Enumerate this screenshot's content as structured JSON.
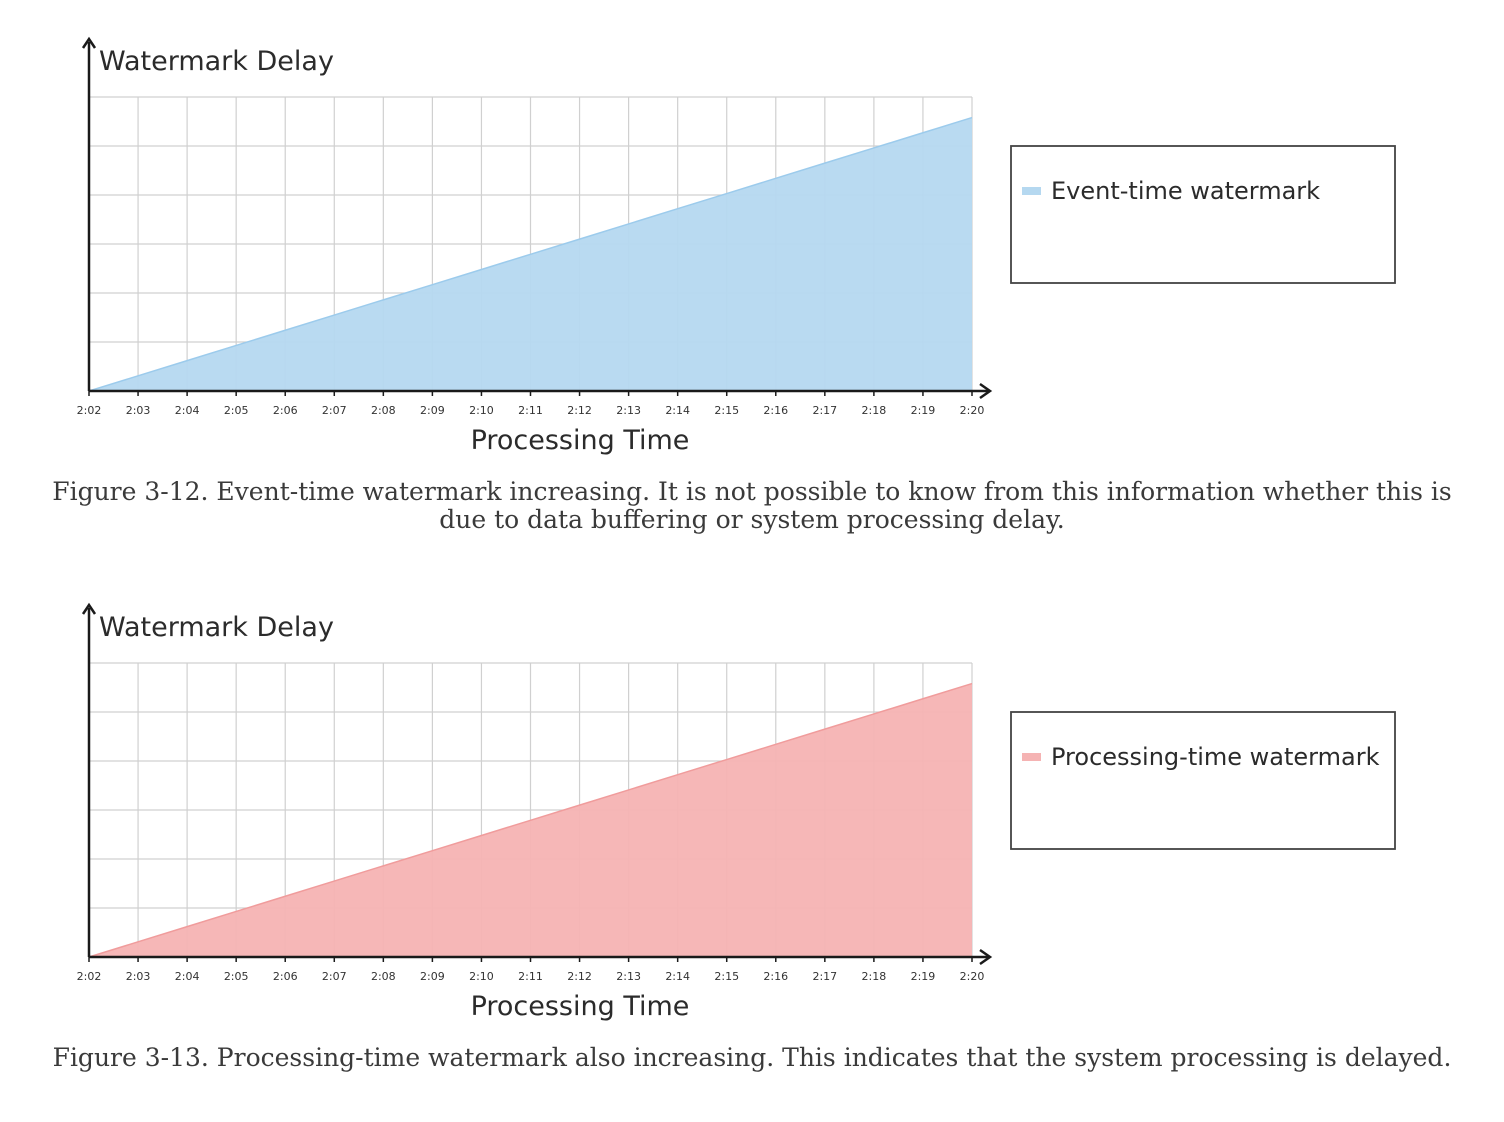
{
  "chart_data": [
    {
      "type": "area",
      "title": "",
      "xlabel": "Processing Time",
      "ylabel": "Watermark Delay",
      "x": [
        "2:02",
        "2:03",
        "2:04",
        "2:05",
        "2:06",
        "2:07",
        "2:08",
        "2:09",
        "2:10",
        "2:11",
        "2:12",
        "2:13",
        "2:14",
        "2:15",
        "2:16",
        "2:17",
        "2:18",
        "2:19",
        "2:20"
      ],
      "series": [
        {
          "name": "Event-time watermark",
          "color": "#b5d8f0",
          "stroke": "#9ccbec",
          "values": [
            0,
            0.31,
            0.62,
            0.93,
            1.24,
            1.55,
            1.86,
            2.17,
            2.48,
            2.79,
            3.1,
            3.41,
            3.72,
            4.03,
            4.34,
            4.65,
            4.96,
            5.27,
            5.58
          ]
        }
      ],
      "ylim": [
        0,
        6
      ],
      "grid": true,
      "legend_position": "right",
      "caption": "Figure 3-12. Event-time watermark increasing. It is not possible to know from this information whether this is due to data buffering or system processing delay."
    },
    {
      "type": "area",
      "title": "",
      "xlabel": "Processing Time",
      "ylabel": "Watermark Delay",
      "x": [
        "2:02",
        "2:03",
        "2:04",
        "2:05",
        "2:06",
        "2:07",
        "2:08",
        "2:09",
        "2:10",
        "2:11",
        "2:12",
        "2:13",
        "2:14",
        "2:15",
        "2:16",
        "2:17",
        "2:18",
        "2:19",
        "2:20"
      ],
      "series": [
        {
          "name": "Processing-time watermark",
          "color": "#f5b3b3",
          "stroke": "#f09c9c",
          "values": [
            0,
            0.31,
            0.62,
            0.93,
            1.24,
            1.55,
            1.86,
            2.17,
            2.48,
            2.79,
            3.1,
            3.41,
            3.72,
            4.03,
            4.34,
            4.65,
            4.96,
            5.27,
            5.58
          ]
        }
      ],
      "ylim": [
        0,
        6
      ],
      "grid": true,
      "legend_position": "right",
      "caption": "Figure 3-13. Processing-time watermark also increasing. This indicates that the system processing is delayed."
    }
  ]
}
